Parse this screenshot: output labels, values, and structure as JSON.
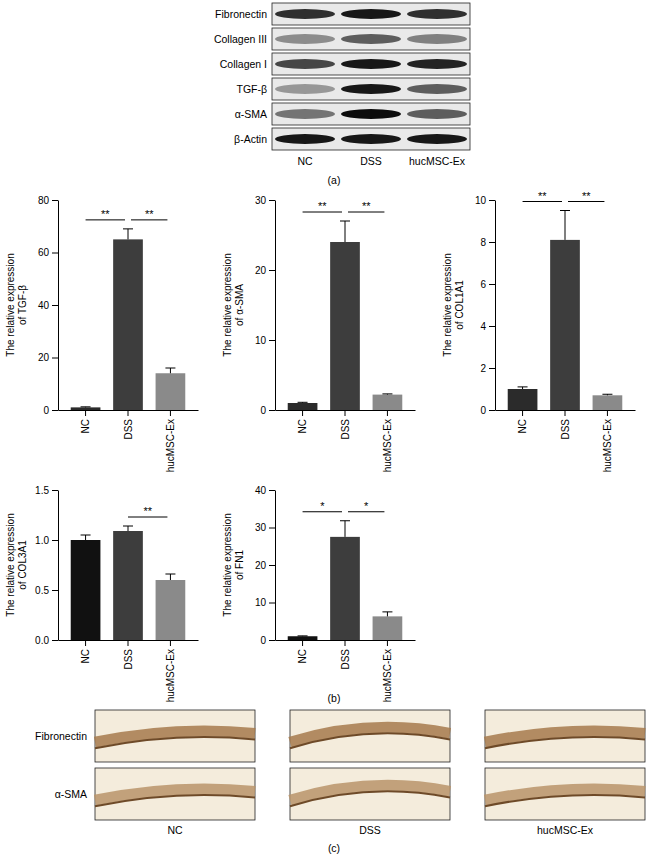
{
  "chart_data": [
    {
      "type": "bar",
      "y_label": [
        "The relative expression",
        "of TGF-β"
      ],
      "categories": [
        "NC",
        "DSS",
        "hucMSC-Ex"
      ],
      "values": [
        1,
        65,
        14
      ],
      "errors": [
        0.2,
        4,
        2
      ],
      "colors": [
        "#2b2b2b",
        "#3d3d3d",
        "#8a8a8a"
      ],
      "ylim": [
        0,
        80
      ],
      "yticks": [
        0,
        20,
        40,
        60,
        80
      ],
      "annotations": [
        {
          "text": "**",
          "between": [
            "NC",
            "DSS"
          ]
        },
        {
          "text": "**",
          "between": [
            "DSS",
            "hucMSC-Ex"
          ]
        }
      ]
    },
    {
      "type": "bar",
      "y_label": [
        "The relative expression",
        "of α-SMA"
      ],
      "categories": [
        "NC",
        "DSS",
        "hucMSC-Ex"
      ],
      "values": [
        1,
        24,
        2.2
      ],
      "errors": [
        0.1,
        3,
        0.1
      ],
      "colors": [
        "#2b2b2b",
        "#3d3d3d",
        "#8a8a8a"
      ],
      "ylim": [
        0,
        30
      ],
      "yticks": [
        0,
        10,
        20,
        30
      ],
      "annotations": [
        {
          "text": "**",
          "between": [
            "NC",
            "DSS"
          ]
        },
        {
          "text": "**",
          "between": [
            "DSS",
            "hucMSC-Ex"
          ]
        }
      ]
    },
    {
      "type": "bar",
      "y_label": [
        "The relative expression",
        "of COL1A1"
      ],
      "categories": [
        "NC",
        "DSS",
        "hucMSC-Ex"
      ],
      "values": [
        1,
        8.1,
        0.7
      ],
      "errors": [
        0.1,
        1.4,
        0.05
      ],
      "colors": [
        "#2b2b2b",
        "#3d3d3d",
        "#8a8a8a"
      ],
      "ylim": [
        0,
        10
      ],
      "yticks": [
        0,
        2,
        4,
        6,
        8,
        10
      ],
      "annotations": [
        {
          "text": "**",
          "between": [
            "NC",
            "DSS"
          ]
        },
        {
          "text": "**",
          "between": [
            "DSS",
            "hucMSC-Ex"
          ]
        }
      ]
    },
    {
      "type": "bar",
      "y_label": [
        "The relative expression",
        "of COL3A1"
      ],
      "categories": [
        "NC",
        "DSS",
        "hucMSC-Ex"
      ],
      "values": [
        1.0,
        1.09,
        0.6
      ],
      "errors": [
        0.05,
        0.05,
        0.06
      ],
      "colors": [
        "#111111",
        "#3d3d3d",
        "#8a8a8a"
      ],
      "ylim": [
        0,
        1.5
      ],
      "yticks": [
        {
          "value": 0,
          "label": "0.0"
        },
        {
          "value": 0.5,
          "label": "0.5"
        },
        {
          "value": 1,
          "label": "1.0"
        },
        {
          "value": 1.5,
          "label": "1.5"
        }
      ],
      "annotations": [
        {
          "text": "**",
          "between": [
            "DSS",
            "hucMSC-Ex"
          ]
        }
      ]
    },
    {
      "type": "bar",
      "y_label": [
        "The relative expression",
        "of FN1"
      ],
      "categories": [
        "NC",
        "DSS",
        "hucMSC-Ex"
      ],
      "values": [
        1,
        27.5,
        6.3
      ],
      "errors": [
        0.1,
        4.3,
        1.2
      ],
      "colors": [
        "#111111",
        "#3d3d3d",
        "#8a8a8a"
      ],
      "ylim": [
        0,
        40
      ],
      "yticks": [
        0,
        10,
        20,
        30,
        40
      ],
      "annotations": [
        {
          "text": "*",
          "between": [
            "NC",
            "DSS"
          ]
        },
        {
          "text": "*",
          "between": [
            "DSS",
            "hucMSC-Ex"
          ]
        }
      ]
    }
  ],
  "blot": {
    "rows": [
      {
        "label": "Fibronectin",
        "intensities": [
          0.8,
          0.9,
          0.8
        ]
      },
      {
        "label": "Collagen III",
        "intensities": [
          0.4,
          0.6,
          0.45
        ]
      },
      {
        "label": "Collagen I",
        "intensities": [
          0.7,
          0.9,
          0.85
        ]
      },
      {
        "label": "TGF-β",
        "intensities": [
          0.35,
          0.9,
          0.6
        ]
      },
      {
        "label": "α-SMA",
        "intensities": [
          0.5,
          0.95,
          0.6
        ]
      },
      {
        "label": "β-Actin",
        "intensities": [
          0.9,
          0.9,
          0.9
        ]
      }
    ],
    "groups": [
      "NC",
      "DSS",
      "hucMSC-Ex"
    ]
  },
  "ihc": {
    "rows": [
      "Fibronectin",
      "α-SMA"
    ],
    "groups": [
      "NC",
      "DSS",
      "hucMSC-Ex"
    ]
  },
  "panel_labels": {
    "a": "(a)",
    "b": "(b)",
    "c": "(c)"
  }
}
